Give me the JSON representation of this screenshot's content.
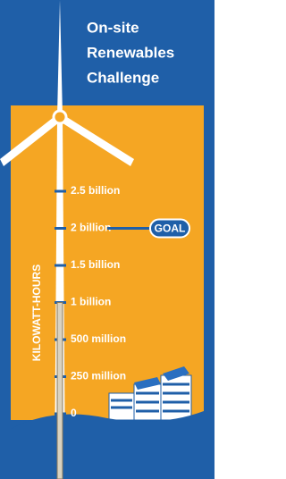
{
  "chart_data": {
    "type": "gauge",
    "title": [
      "On-site",
      "Renewables",
      "Challenge"
    ],
    "ylabel": "KILOWATT-HOURS",
    "values": [
      1000000000
    ],
    "goal": {
      "value": 2000000000,
      "label": "GOAL"
    },
    "ylim": [
      0,
      2500000000
    ],
    "yticks": [
      0,
      {
        "value": 250000000,
        "label": "250 million"
      },
      {
        "value": 500000000,
        "label": "500 million"
      },
      {
        "value": 1000000000,
        "label": "1 billion"
      },
      {
        "value": 1500000000,
        "label": "1.5 billion"
      },
      {
        "value": 2000000000,
        "label": "2 billion"
      },
      {
        "value": 2500000000,
        "label": "2.5 billion"
      }
    ],
    "color": "#f5a623"
  }
}
